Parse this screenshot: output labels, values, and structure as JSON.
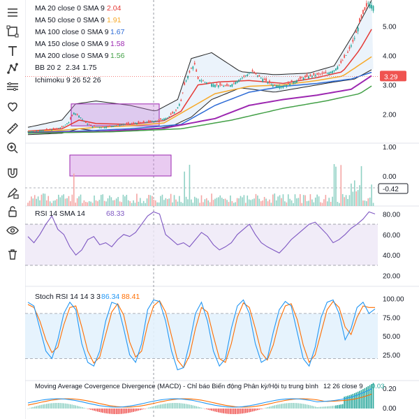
{
  "toolbar": {
    "tools": [
      "menu-lines-icon",
      "rectangle-select-icon",
      "text-tool-icon",
      "node-path-icon",
      "horizontal-lines-icon",
      "heart-icon",
      "ruler-icon",
      "zoom-in-icon",
      "magnet-icon",
      "pencil-lock-icon",
      "lock-open-icon",
      "eye-icon",
      "trash-icon"
    ]
  },
  "chart_data": [
    {
      "type": "candlestick",
      "pane": "price",
      "ylim": [
        1.2,
        5.9
      ],
      "ticks": [
        5.0,
        4.0,
        3.0,
        2.0
      ],
      "tick_labels": [
        "5.00",
        "4.00",
        "3.00",
        "2.00"
      ],
      "last_price": "3.29",
      "last_price_value": 3.29,
      "price_path": [
        [
          0,
          1.4
        ],
        [
          8,
          1.45
        ],
        [
          14,
          1.48
        ],
        [
          20,
          1.55
        ],
        [
          24,
          1.72
        ],
        [
          27,
          2.05
        ],
        [
          30,
          1.95
        ],
        [
          34,
          1.7
        ],
        [
          38,
          1.58
        ],
        [
          44,
          1.55
        ],
        [
          52,
          1.62
        ],
        [
          60,
          1.68
        ],
        [
          68,
          1.72
        ],
        [
          76,
          1.78
        ],
        [
          82,
          1.88
        ],
        [
          87,
          2.12
        ],
        [
          90,
          2.45
        ],
        [
          92,
          3.0
        ],
        [
          94,
          3.3
        ],
        [
          96,
          3.55
        ],
        [
          98,
          3.7
        ],
        [
          100,
          3.2
        ],
        [
          104,
          3.1
        ],
        [
          110,
          3.0
        ],
        [
          118,
          2.95
        ],
        [
          126,
          3.25
        ],
        [
          132,
          3.45
        ],
        [
          138,
          3.2
        ],
        [
          144,
          3.0
        ],
        [
          150,
          2.95
        ],
        [
          156,
          3.1
        ],
        [
          162,
          3.25
        ],
        [
          170,
          3.35
        ],
        [
          176,
          3.4
        ],
        [
          180,
          3.5
        ],
        [
          184,
          3.75
        ],
        [
          188,
          4.1
        ],
        [
          192,
          4.6
        ],
        [
          196,
          5.3
        ],
        [
          200,
          5.8
        ],
        [
          203,
          5.7
        ]
      ],
      "ma_series": [
        {
          "name": "MA 20 close 0 SMA 9",
          "value": "2.04",
          "color": "#e53935"
        },
        {
          "name": "MA 50 close 0 SMA 9",
          "value": "1.91",
          "color": "#f7a928"
        },
        {
          "name": "MA 100 close 0 SMA 9",
          "value": "1.67",
          "color": "#2d6bd6"
        },
        {
          "name": "MA 150 close 0 SMA 9",
          "value": "1.58",
          "color": "#9c27b0"
        },
        {
          "name": "MA 200 close 0 SMA 9",
          "value": "1.56",
          "color": "#43a047"
        }
      ],
      "ma_paths": {
        "ma20": [
          [
            0,
            1.42
          ],
          [
            20,
            1.5
          ],
          [
            30,
            1.8
          ],
          [
            40,
            1.68
          ],
          [
            60,
            1.65
          ],
          [
            80,
            1.78
          ],
          [
            90,
            2.1
          ],
          [
            100,
            3.0
          ],
          [
            112,
            3.1
          ],
          [
            130,
            3.15
          ],
          [
            150,
            3.05
          ],
          [
            170,
            3.25
          ],
          [
            185,
            3.45
          ],
          [
            195,
            4.2
          ],
          [
            203,
            5.0
          ]
        ],
        "ma50": [
          [
            0,
            1.4
          ],
          [
            20,
            1.45
          ],
          [
            40,
            1.55
          ],
          [
            60,
            1.6
          ],
          [
            80,
            1.7
          ],
          [
            95,
            2.2
          ],
          [
            110,
            2.7
          ],
          [
            130,
            2.95
          ],
          [
            150,
            3.0
          ],
          [
            170,
            3.15
          ],
          [
            185,
            3.3
          ],
          [
            203,
            4.0
          ]
        ],
        "ma100": [
          [
            0,
            1.38
          ],
          [
            30,
            1.42
          ],
          [
            60,
            1.5
          ],
          [
            90,
            1.65
          ],
          [
            110,
            2.3
          ],
          [
            130,
            2.75
          ],
          [
            150,
            2.95
          ],
          [
            170,
            3.05
          ],
          [
            190,
            3.2
          ],
          [
            203,
            3.45
          ]
        ],
        "ma150": [
          [
            0,
            1.36
          ],
          [
            40,
            1.4
          ],
          [
            80,
            1.52
          ],
          [
            110,
            1.85
          ],
          [
            130,
            2.3
          ],
          [
            150,
            2.5
          ],
          [
            170,
            2.65
          ],
          [
            190,
            2.85
          ],
          [
            203,
            3.35
          ]
        ],
        "ma200": [
          [
            0,
            1.35
          ],
          [
            50,
            1.4
          ],
          [
            90,
            1.5
          ],
          [
            120,
            1.8
          ],
          [
            150,
            2.2
          ],
          [
            175,
            2.45
          ],
          [
            195,
            2.7
          ],
          [
            203,
            3.0
          ]
        ]
      },
      "bb_label": "BB 20 2",
      "bb_values": [
        "2.34",
        "1.75"
      ],
      "bb_upper": [
        [
          0,
          1.55
        ],
        [
          20,
          1.8
        ],
        [
          28,
          2.35
        ],
        [
          40,
          2.45
        ],
        [
          60,
          2.3
        ],
        [
          75,
          2.1
        ],
        [
          88,
          2.5
        ],
        [
          96,
          3.9
        ],
        [
          108,
          4.1
        ],
        [
          125,
          3.45
        ],
        [
          145,
          3.35
        ],
        [
          165,
          3.4
        ],
        [
          180,
          3.65
        ],
        [
          192,
          4.8
        ],
        [
          203,
          6.0
        ]
      ],
      "bb_lower": [
        [
          0,
          1.3
        ],
        [
          20,
          1.35
        ],
        [
          30,
          1.5
        ],
        [
          45,
          1.4
        ],
        [
          60,
          1.45
        ],
        [
          75,
          1.5
        ],
        [
          85,
          1.6
        ],
        [
          96,
          1.9
        ],
        [
          108,
          2.5
        ],
        [
          125,
          2.9
        ],
        [
          145,
          2.75
        ],
        [
          165,
          2.95
        ],
        [
          180,
          3.1
        ],
        [
          192,
          3.2
        ],
        [
          203,
          3.55
        ]
      ],
      "ichimoku_label": "Ichimoku 9 26 52 26"
    },
    {
      "type": "bar",
      "pane": "volume",
      "ticks": [
        1.0,
        0.0
      ],
      "tick_labels": [
        "1.00",
        "0.00"
      ],
      "last_value": "-0.42"
    },
    {
      "type": "line",
      "pane": "rsi",
      "label": "RSI 14 SMA 14",
      "value": "68.33",
      "ylim": [
        15,
        85
      ],
      "band": [
        30,
        70
      ],
      "ticks": [
        80,
        60,
        40,
        20
      ],
      "tick_labels": [
        "80.00",
        "60.00",
        "40.00",
        "20.00"
      ],
      "values": [
        58,
        52,
        60,
        70,
        78,
        65,
        60,
        48,
        40,
        45,
        55,
        58,
        50,
        52,
        48,
        55,
        60,
        58,
        62,
        70,
        78,
        82,
        80,
        60,
        55,
        50,
        52,
        48,
        55,
        62,
        58,
        50,
        45,
        48,
        52,
        60,
        65,
        70,
        60,
        52,
        48,
        45,
        42,
        48,
        55,
        60,
        65,
        70,
        72,
        66,
        60,
        52,
        55,
        60,
        66,
        70,
        75,
        82,
        80
      ]
    },
    {
      "type": "line",
      "pane": "stoch_rsi",
      "label": "Stoch RSI 14 14 3 3",
      "values_text": [
        "86.34",
        "88.41"
      ],
      "ylim": [
        0,
        105
      ],
      "band": [
        20,
        80
      ],
      "ticks": [
        100,
        75,
        50,
        25
      ],
      "tick_labels": [
        "100.00",
        "75.00",
        "50.00",
        "25.00"
      ],
      "k": [
        95,
        90,
        60,
        30,
        20,
        45,
        80,
        95,
        85,
        40,
        15,
        10,
        30,
        70,
        95,
        92,
        60,
        25,
        15,
        40,
        85,
        98,
        96,
        70,
        30,
        5,
        8,
        40,
        80,
        95,
        70,
        30,
        10,
        20,
        60,
        90,
        98,
        80,
        40,
        15,
        20,
        55,
        85,
        96,
        90,
        55,
        20,
        10,
        35,
        75,
        95,
        98,
        80,
        45,
        60,
        88,
        95,
        80,
        86
      ],
      "d": [
        92,
        88,
        70,
        45,
        28,
        35,
        65,
        88,
        90,
        62,
        30,
        14,
        22,
        52,
        82,
        93,
        78,
        42,
        22,
        30,
        65,
        90,
        97,
        82,
        50,
        18,
        8,
        24,
        60,
        88,
        82,
        50,
        20,
        15,
        40,
        75,
        94,
        88,
        60,
        28,
        18,
        38,
        70,
        90,
        93,
        72,
        38,
        15,
        25,
        55,
        85,
        96,
        88,
        62,
        52,
        75,
        90,
        88,
        88
      ]
    },
    {
      "type": "bar",
      "pane": "macd",
      "label": "Moving Average Covergence Divergence (MACD) - Chỉ báo Biến động Phân kỳ/Hội tụ trung bình",
      "params": "12 26 close 9",
      "value": "0.03",
      "ticks": [
        0.2,
        0.0
      ],
      "tick_labels": [
        "0.20",
        "0.00"
      ]
    }
  ]
}
